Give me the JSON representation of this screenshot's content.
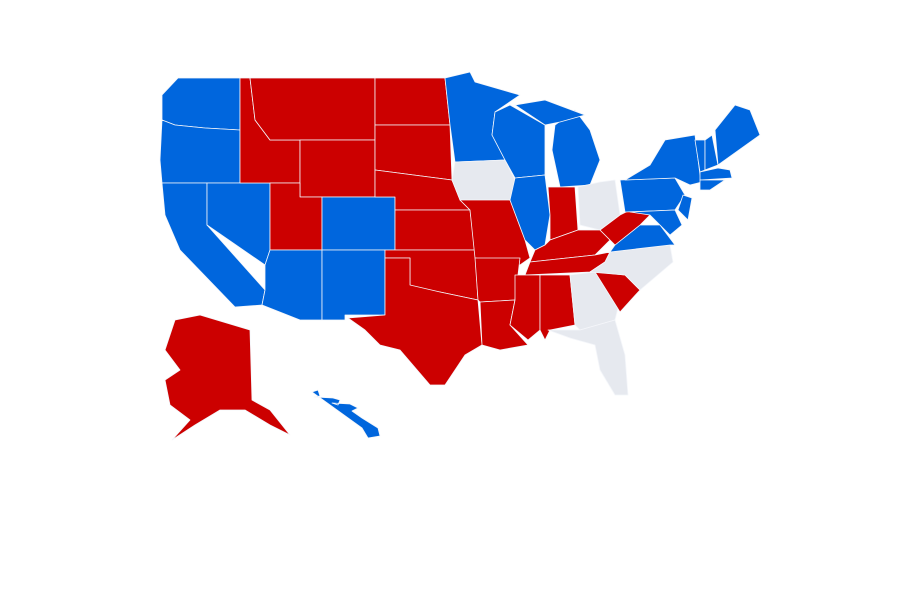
{
  "colors": {
    "red": "#cc0000",
    "blue": "#0066dd",
    "undecided": "#e6e9ef"
  },
  "states": {
    "WA": "blue",
    "OR": "blue",
    "CA": "blue",
    "NV": "blue",
    "ID": "red",
    "MT": "red",
    "WY": "red",
    "UT": "red",
    "CO": "blue",
    "AZ": "blue",
    "NM": "blue",
    "ND": "red",
    "SD": "red",
    "NE": "red",
    "KS": "red",
    "OK": "red",
    "TX": "red",
    "MN": "blue",
    "IA": "undecided",
    "MO": "red",
    "AR": "red",
    "LA": "red",
    "WI": "blue",
    "IL": "blue",
    "MI": "blue",
    "MI_UP": "blue",
    "IN": "red",
    "OH": "undecided",
    "KY": "red",
    "TN": "red",
    "MS": "red",
    "AL": "red",
    "GA": "undecided",
    "FL": "undecided",
    "SC": "red",
    "NC": "undecided",
    "VA": "blue",
    "WV": "red",
    "PA": "blue",
    "NY": "blue",
    "NJ": "blue",
    "MD": "blue",
    "VT": "blue",
    "NH": "blue",
    "ME": "blue",
    "MA": "blue",
    "CT": "blue",
    "AK": "red",
    "HI": "blue"
  }
}
